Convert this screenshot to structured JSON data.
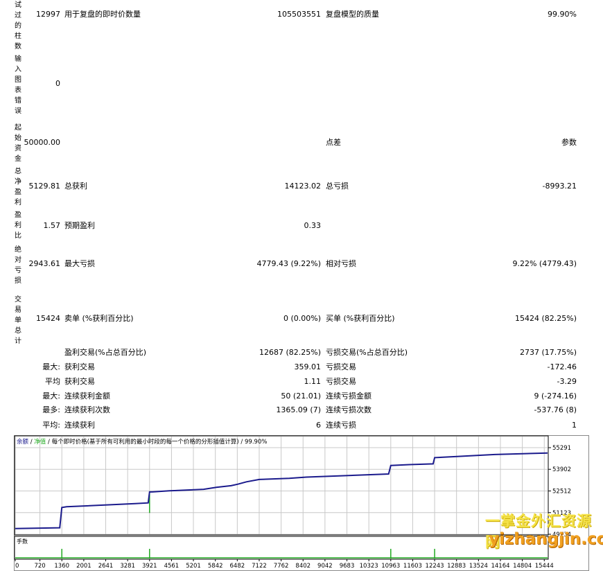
{
  "labels": {
    "test_bars": "试过的柱数",
    "input_errors": "输入图表错误",
    "initial_deposit": "起始资金",
    "net_profit": "总净盈利",
    "profit_factor": "盈利比",
    "abs_drawdown": "绝对亏损",
    "total_trades": "交易单总计"
  },
  "rows": {
    "r1": {
      "v1": "12997",
      "l2": "用于复盘的即时价数量",
      "v2": "105503551",
      "l3": "复盘模型的质量",
      "v3": "99.90%"
    },
    "r2": {
      "v1": "0"
    },
    "r3": {
      "v1": "50000.00",
      "l3": "点差",
      "v3": "参数"
    },
    "r4": {
      "v1": "5129.81",
      "l2": "总获利",
      "v2": "14123.02",
      "l3": "总亏损",
      "v3": "-8993.21"
    },
    "r5": {
      "v1": "1.57",
      "l2": "预期盈利",
      "v2": "0.33"
    },
    "r6": {
      "v1": "2943.61",
      "l2": "最大亏损",
      "v2": "4779.43 (9.22%)",
      "l3": "相对亏损",
      "v3": "9.22% (4779.43)"
    },
    "r7": {
      "v1": "15424",
      "l2": "卖单 (%获利百分比)",
      "v2": "0 (0.00%)",
      "l3": "买单 (%获利百分比)",
      "v3": "15424 (82.25%)"
    }
  },
  "stats": [
    {
      "prefix": "",
      "l2": "盈利交易(%占总百分比)",
      "v2": "12687 (82.25%)",
      "l3": "亏损交易(%占总百分比)",
      "v3": "2737 (17.75%)"
    },
    {
      "prefix": "最大:",
      "l2": "获利交易",
      "v2": "359.01",
      "l3": "亏损交易",
      "v3": "-172.46"
    },
    {
      "prefix": "平均",
      "l2": "获利交易",
      "v2": "1.11",
      "l3": "亏损交易",
      "v3": "-3.29"
    },
    {
      "prefix": "最大:",
      "l2": "连续获利金额",
      "v2": "50 (21.01)",
      "l3": "连续亏损金额",
      "v3": "9 (-274.16)"
    },
    {
      "prefix": "最多:",
      "l2": "连续获利次数",
      "v2": "1365.09 (7)",
      "l3": "连续亏损次数",
      "v3": "-537.76 (8)"
    },
    {
      "prefix": "平均:",
      "l2": "连续获利",
      "v2": "6",
      "l3": "连续亏损",
      "v3": "1"
    }
  ],
  "chart_data": {
    "type": "line",
    "header": {
      "balance": "余额",
      "sep1": " / ",
      "equity": "净值",
      "sep2": " / ",
      "desc": "每个即时价格(基于所有可利用的最小时段的每一个价格的分形插值计算)",
      "sep3": " / ",
      "quality": "99.90%"
    },
    "lot_label": "手数",
    "y_ticks": [
      55291,
      53902,
      52512,
      51123,
      49734
    ],
    "ylim": [
      49734,
      55291
    ],
    "x_ticks": [
      0,
      720,
      1360,
      2001,
      2641,
      3281,
      3921,
      4561,
      5201,
      5842,
      6482,
      7122,
      7762,
      8402,
      9042,
      9683,
      10323,
      10963,
      11603,
      12243,
      12883,
      13524,
      14164,
      14804,
      15444
    ],
    "xlim": [
      0,
      15540
    ],
    "colors": {
      "balance": "#1a1a8c",
      "equity": "#22aa22",
      "lot": "#22aa22",
      "grid": "#c8c8c8"
    },
    "series": [
      {
        "name": "余额",
        "x": [
          0,
          1300,
          1360,
          1500,
          3500,
          3880,
          3921,
          4000,
          4500,
          5500,
          5870,
          6300,
          6500,
          6750,
          7122,
          8000,
          8500,
          10900,
          10963,
          11500,
          12200,
          12243,
          12900,
          14000,
          15540
        ],
        "y": [
          50100,
          50150,
          51450,
          51500,
          51700,
          51750,
          52450,
          52450,
          52520,
          52620,
          52750,
          52850,
          52950,
          53100,
          53250,
          53320,
          53400,
          53600,
          54150,
          54200,
          54250,
          54650,
          54720,
          54850,
          54950
        ]
      }
    ],
    "equity_spikes": [
      {
        "x": 3921,
        "y": 51100
      }
    ],
    "lot_spikes": [
      1360,
      3921,
      10963,
      12243
    ]
  },
  "watermark": {
    "line1": "一掌金外汇资源网",
    "line2": "yizhangjin.com"
  }
}
